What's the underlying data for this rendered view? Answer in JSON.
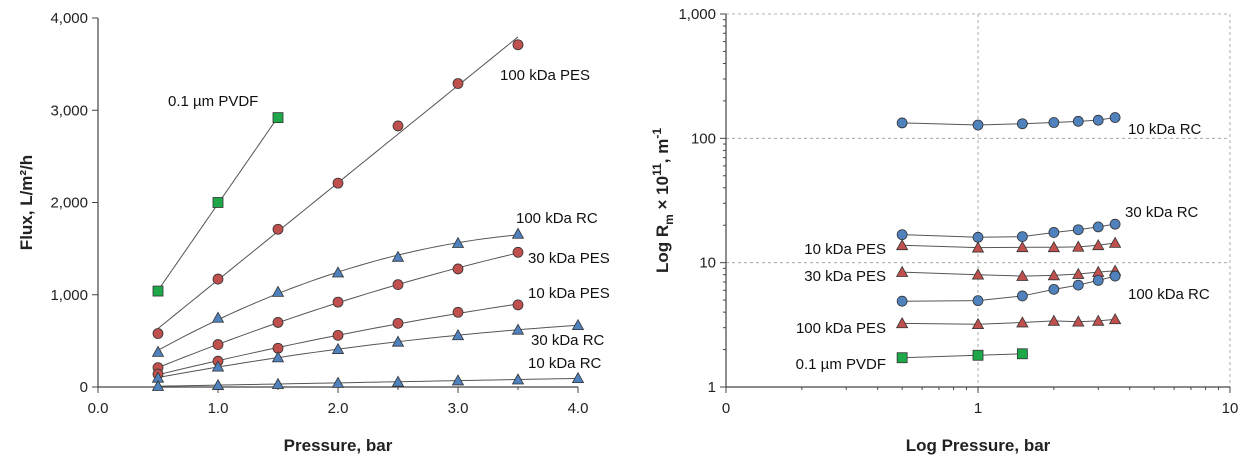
{
  "colors": {
    "pes": "#c0504d",
    "rc": "#4f81bd",
    "pvdf": "#1ea84a",
    "edge": "#333333",
    "grid": "#9a9a9a"
  },
  "chart_data": [
    {
      "type": "scatter",
      "xlabel": "Pressure, bar",
      "ylabel": "Flux, L/m²/h",
      "xlim": [
        0,
        4.0
      ],
      "ylim": [
        0,
        4000
      ],
      "xticks": [
        "0.0",
        "1.0",
        "2.0",
        "3.0",
        "4.0"
      ],
      "yticks": [
        "0",
        "1,000",
        "2,000",
        "3,000",
        "4,000"
      ],
      "grid": false,
      "series": [
        {
          "name": "0.1 µm PVDF",
          "marker": "square",
          "color": "pvdf",
          "x": [
            0.5,
            1.0,
            1.5
          ],
          "y": [
            1040,
            2000,
            2920
          ],
          "fit": "linear",
          "fit_range": [
            0.5,
            1.5
          ]
        },
        {
          "name": "100 kDa PES",
          "marker": "circle",
          "color": "pes",
          "x": [
            0.5,
            1.0,
            1.5,
            2.0,
            2.5,
            3.0,
            3.5
          ],
          "y": [
            580,
            1170,
            1710,
            2210,
            2830,
            3290,
            3710
          ],
          "fit": "linear",
          "fit_range": [
            0.5,
            3.5
          ]
        },
        {
          "name": "100 kDa RC",
          "marker": "triangle",
          "color": "rc",
          "x": [
            0.5,
            1.0,
            1.5,
            2.0,
            2.5,
            3.0,
            3.5
          ],
          "y": [
            380,
            750,
            1030,
            1240,
            1410,
            1560,
            1660
          ],
          "fit": "quadratic",
          "fit_range": [
            0.5,
            3.5
          ]
        },
        {
          "name": "30 kDa PES",
          "marker": "circle",
          "color": "pes",
          "x": [
            0.5,
            1.0,
            1.5,
            2.0,
            2.5,
            3.0,
            3.5
          ],
          "y": [
            210,
            460,
            700,
            920,
            1110,
            1280,
            1460
          ],
          "fit": "quadratic",
          "fit_range": [
            0.5,
            3.5
          ]
        },
        {
          "name": "10 kDa PES",
          "marker": "circle",
          "color": "pes",
          "x": [
            0.5,
            1.0,
            1.5,
            2.0,
            2.5,
            3.0,
            3.5
          ],
          "y": [
            140,
            280,
            420,
            560,
            690,
            810,
            890
          ],
          "fit": "quadratic",
          "fit_range": [
            0.5,
            3.5
          ]
        },
        {
          "name": "30 kDa RC",
          "marker": "triangle",
          "color": "rc",
          "x": [
            0.5,
            1.0,
            1.5,
            2.0,
            2.5,
            3.0,
            3.5,
            4.0
          ],
          "y": [
            100,
            220,
            320,
            410,
            490,
            560,
            620,
            670
          ],
          "fit": "quadratic",
          "fit_range": [
            0.5,
            4.0
          ]
        },
        {
          "name": "10 kDa RC",
          "marker": "triangle",
          "color": "rc",
          "x": [
            0.5,
            1.0,
            1.5,
            2.0,
            2.5,
            3.0,
            3.5,
            4.0
          ],
          "y": [
            10,
            20,
            32,
            44,
            56,
            70,
            80,
            95
          ],
          "fit": "linear",
          "fit_range": [
            0.5,
            4.0
          ]
        }
      ]
    },
    {
      "type": "scatter",
      "xlabel": "Log Pressure,  bar",
      "ylabel": "Log R",
      "ylabel_sub": "m",
      "ylabel_mid": " × 10",
      "ylabel_sup": "11",
      "ylabel_end": ", m",
      "ylabel_sup2": "-1",
      "xscale": "log",
      "yscale": "log",
      "xlim": [
        0.1,
        10
      ],
      "ylim": [
        1,
        1000
      ],
      "xticks": [
        "0",
        "1",
        "10"
      ],
      "yticks": [
        "1",
        "10",
        "100",
        "1,000"
      ],
      "grid": true,
      "series": [
        {
          "name": "10 kDa RC",
          "marker": "circle",
          "color": "rc",
          "x": [
            0.5,
            1.0,
            1.5,
            2.0,
            2.5,
            3.0,
            3.5
          ],
          "y": [
            133,
            128,
            131,
            134,
            137,
            140,
            147
          ]
        },
        {
          "name": "30 kDa RC",
          "marker": "circle",
          "color": "rc",
          "x": [
            0.5,
            1.0,
            1.5,
            2.0,
            2.5,
            3.0,
            3.5
          ],
          "y": [
            16.8,
            16.0,
            16.2,
            17.5,
            18.4,
            19.4,
            20.4
          ]
        },
        {
          "name": "10 kDa PES",
          "marker": "triangle",
          "color": "pes",
          "x": [
            0.5,
            1.0,
            1.5,
            2.0,
            2.5,
            3.0,
            3.5
          ],
          "y": [
            13.8,
            13.2,
            13.3,
            13.3,
            13.4,
            13.8,
            14.4
          ]
        },
        {
          "name": "30 kDa PES",
          "marker": "triangle",
          "color": "pes",
          "x": [
            0.5,
            1.0,
            1.5,
            2.0,
            2.5,
            3.0,
            3.5
          ],
          "y": [
            8.4,
            8.0,
            7.8,
            7.9,
            8.1,
            8.4,
            8.6
          ]
        },
        {
          "name": "100 kDa RC",
          "marker": "circle",
          "color": "rc",
          "x": [
            0.5,
            1.0,
            1.5,
            2.0,
            2.5,
            3.0,
            3.5
          ],
          "y": [
            4.9,
            4.95,
            5.4,
            6.1,
            6.6,
            7.2,
            7.8
          ]
        },
        {
          "name": "100 kDa PES",
          "marker": "triangle",
          "color": "pes",
          "x": [
            0.5,
            1.0,
            1.5,
            2.0,
            2.5,
            3.0,
            3.5
          ],
          "y": [
            3.25,
            3.2,
            3.3,
            3.4,
            3.35,
            3.4,
            3.5
          ]
        },
        {
          "name": "0.1 µm PVDF",
          "marker": "square",
          "color": "pvdf",
          "x": [
            0.5,
            1.0,
            1.5
          ],
          "y": [
            1.72,
            1.8,
            1.85
          ]
        }
      ]
    }
  ]
}
